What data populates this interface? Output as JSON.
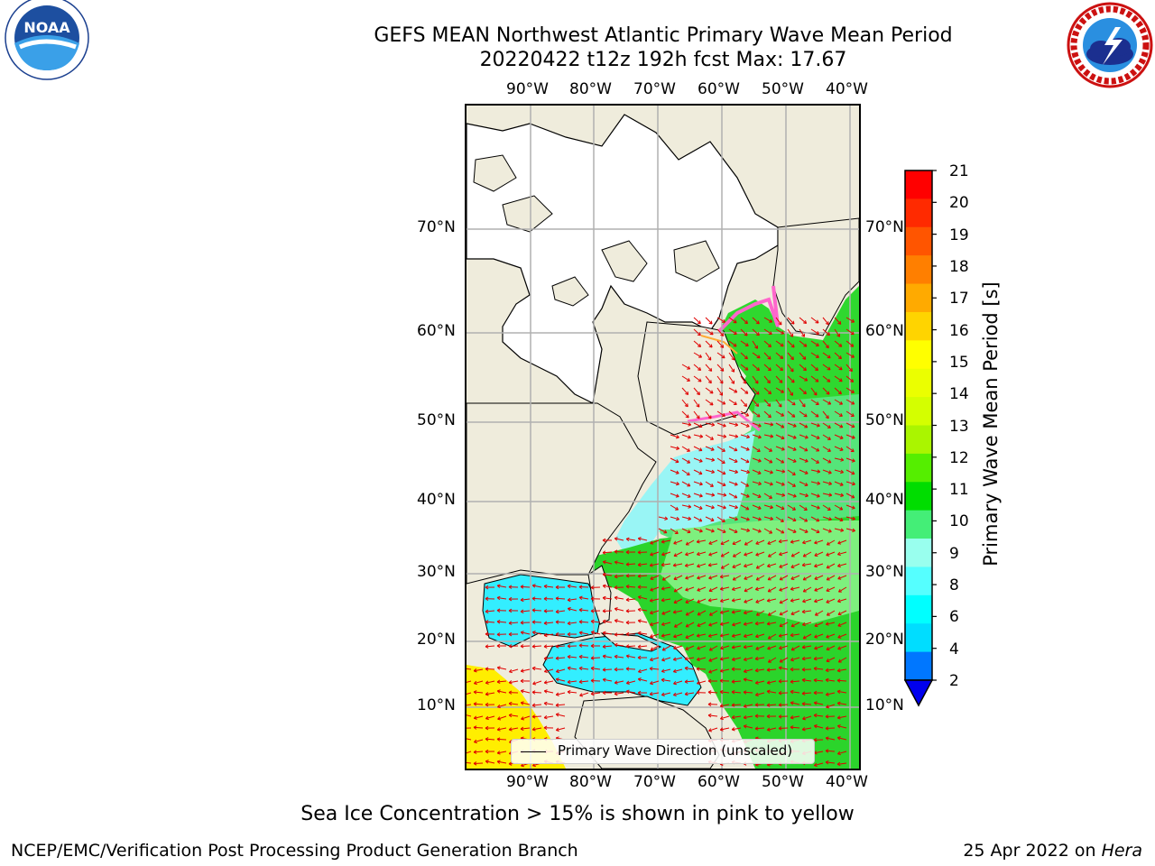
{
  "title": {
    "line1": "GEFS MEAN Northwest Atlantic Primary Wave Mean Period",
    "line2": "20220422 t12z 192h fcst   Max: 17.67"
  },
  "map": {
    "lon_ticks": [
      "90°W",
      "80°W",
      "70°W",
      "60°W",
      "50°W",
      "40°W"
    ],
    "lat_ticks": [
      "70°N",
      "60°N",
      "50°N",
      "40°N",
      "30°N",
      "20°N",
      "10°N"
    ],
    "legend_label": "Primary Wave Direction (unscaled)"
  },
  "colorbar": {
    "label": "Primary Wave Mean Period [s]",
    "ticks": [
      "21",
      "20",
      "19",
      "18",
      "17",
      "16",
      "15",
      "14",
      "13",
      "12",
      "11",
      "10",
      "9",
      "8",
      "6",
      "4",
      "2"
    ],
    "colors": [
      "#ff0000",
      "#ff2a00",
      "#ff5500",
      "#ff7f00",
      "#ffaa00",
      "#ffd400",
      "#ffff00",
      "#ebff00",
      "#d4ff00",
      "#aaf500",
      "#55ee00",
      "#00dd00",
      "#44ee77",
      "#99ffee",
      "#55ffff",
      "#00ffff",
      "#00ddff",
      "#0077ff"
    ],
    "extend_color": "#0000ee"
  },
  "footer": {
    "sea_ice_note": "Sea Ice Concentration > 15% is shown in pink to yellow",
    "credit": "NCEP/EMC/Verification Post Processing Product Generation Branch",
    "date_prefix": "25 Apr 2022 on ",
    "host": "Hera"
  },
  "logos": {
    "noaa_text": "NOAA",
    "nws_text": "NATIONAL WEATHER SERVICE"
  },
  "colors": {
    "land": "#efecdc",
    "ice_land": "#ffffff",
    "arrows": "#e00000",
    "grid": "#b0b0b0"
  }
}
